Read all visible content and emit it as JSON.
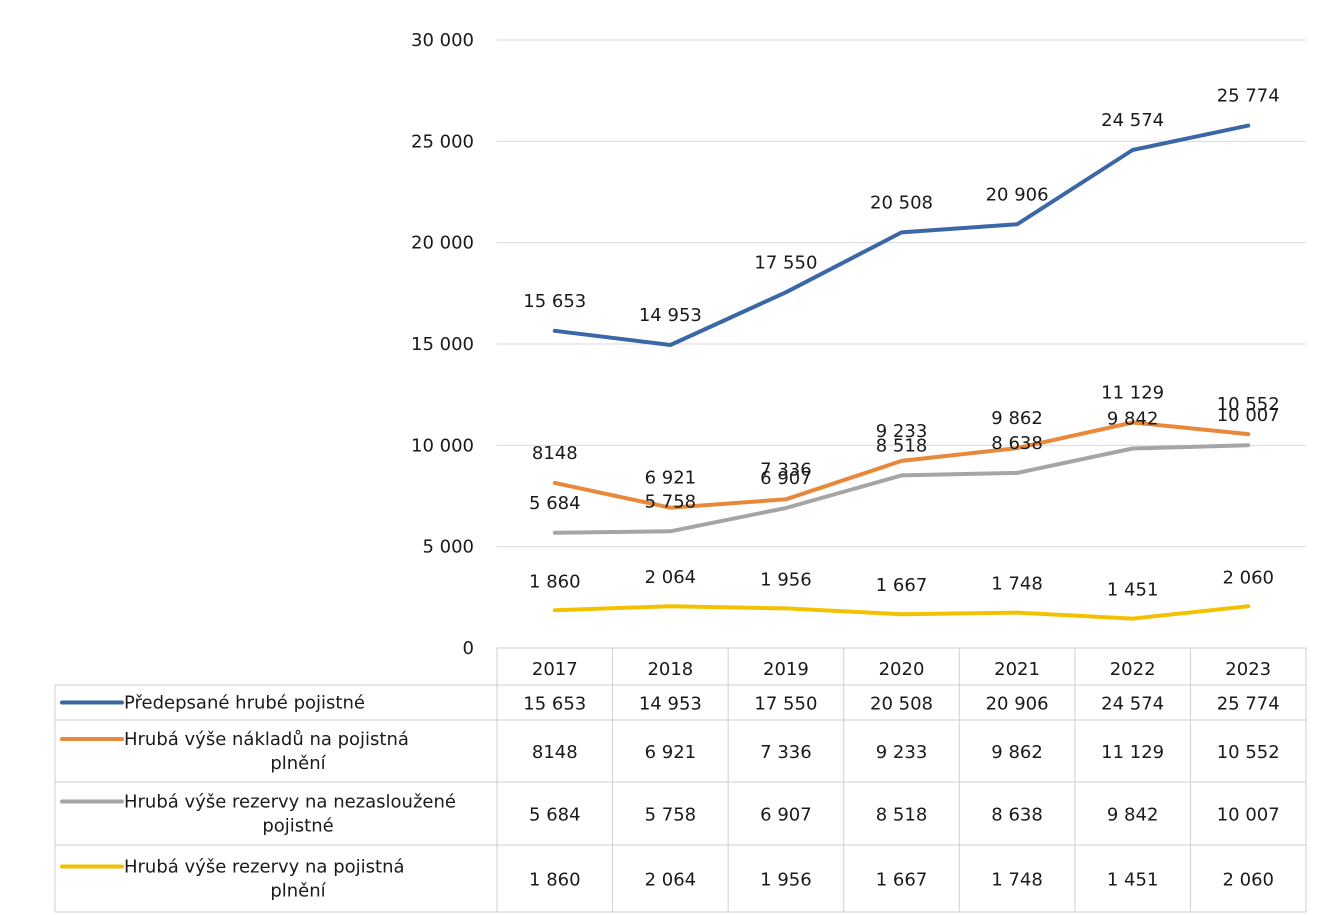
{
  "chart_data": {
    "type": "line",
    "categories": [
      "2017",
      "2018",
      "2019",
      "2020",
      "2021",
      "2022",
      "2023"
    ],
    "ylim": [
      0,
      30000
    ],
    "yticks": [
      0,
      5000,
      10000,
      15000,
      20000,
      25000,
      30000
    ],
    "ytick_labels": [
      "0",
      "5 000",
      "10 000",
      "15 000",
      "20 000",
      "25 000",
      "30 000"
    ],
    "grid": true,
    "legend_placement": "data-table-left",
    "series": [
      {
        "name": "Předepsané hrubé pojistné",
        "name_lines": [
          "Předepsané hrubé pojistné"
        ],
        "color": "#3b67a6",
        "values": [
          15653,
          14953,
          17550,
          20508,
          20906,
          24574,
          25774
        ],
        "labels": [
          "15 653",
          "14 953",
          "17 550",
          "20 508",
          "20 906",
          "24 574",
          "25 774"
        ]
      },
      {
        "name": "Hrubá výše nákladů na pojistná plnění",
        "name_lines": [
          "Hrubá výše nákladů na pojistná",
          "plnění"
        ],
        "color": "#e8883a",
        "values": [
          8148,
          6921,
          7336,
          9233,
          9862,
          11129,
          10552
        ],
        "labels": [
          "8148",
          "6 921",
          "7 336",
          "9 233",
          "9 862",
          "11 129",
          "10 552"
        ]
      },
      {
        "name": "Hrubá výše rezervy na nezasloužené pojistné",
        "name_lines": [
          "Hrubá výše rezervy na nezasloužené",
          "pojistné"
        ],
        "color": "#a5a5a5",
        "values": [
          5684,
          5758,
          6907,
          8518,
          8638,
          9842,
          10007
        ],
        "labels": [
          "5 684",
          "5 758",
          "6 907",
          "8 518",
          "8 638",
          "9 842",
          "10 007"
        ]
      },
      {
        "name": "Hrubá výše rezervy na pojistná plnění",
        "name_lines": [
          "Hrubá výše rezervy na pojistná",
          "plnění"
        ],
        "color": "#f2c200",
        "values": [
          1860,
          2064,
          1956,
          1667,
          1748,
          1451,
          2060
        ],
        "labels": [
          "1 860",
          "2 064",
          "1 956",
          "1 667",
          "1 748",
          "1 451",
          "2 060"
        ]
      }
    ]
  }
}
